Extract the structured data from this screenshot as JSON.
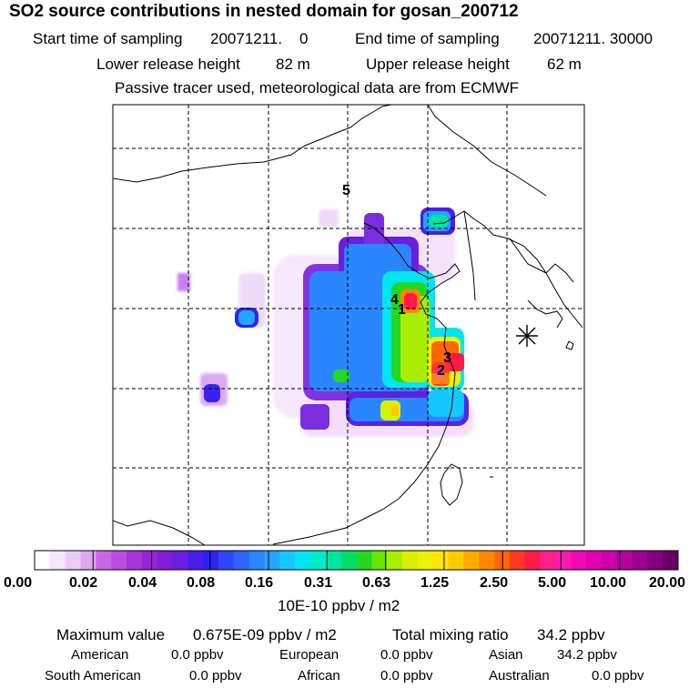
{
  "title": "SO2 source contributions in nested domain for gosan_200712",
  "header": {
    "start_label": "Start time of sampling",
    "start_value": "20071211.    0",
    "end_label": "End time of sampling",
    "end_value": "20071211. 30000",
    "lower_label": "Lower release height",
    "lower_value": "82 m",
    "upper_label": "Upper release height",
    "upper_value": "62 m",
    "note": "Passive tracer used, meteorological data are from ECMWF"
  },
  "map": {
    "source_labels": [
      "5",
      "4",
      "1",
      "3",
      "2"
    ],
    "receptor_marker": "asterisk-icon"
  },
  "colorbar": {
    "ticks": [
      "0.00",
      "0.02",
      "0.04",
      "0.08",
      "0.16",
      "0.31",
      "0.63",
      "1.25",
      "2.50",
      "5.00",
      "10.00",
      "20.00"
    ],
    "colors": [
      "#ffffff",
      "#f4e6fb",
      "#ebccf7",
      "#e0a8f2",
      "#cc66e8",
      "#b84de0",
      "#a833d8",
      "#9922d8",
      "#7f1ed8",
      "#6a1ee0",
      "#4a1ee8",
      "#2f22f2",
      "#2f46ff",
      "#2a66ff",
      "#2a86ff",
      "#22a6ff",
      "#14c8ff",
      "#00e6f0",
      "#00eacc",
      "#00e6a0",
      "#00dc6a",
      "#22d822",
      "#66e600",
      "#a8ee00",
      "#d6f200",
      "#eef200",
      "#ffe600",
      "#ffcc00",
      "#ffaa00",
      "#ff8800",
      "#ff6600",
      "#ff3a22",
      "#ff1a4a",
      "#ff1f8a",
      "#ff1aaa",
      "#f00ab4",
      "#e000b0",
      "#cc00a8",
      "#b4009c",
      "#9c0090",
      "#820080",
      "#660066"
    ],
    "unit": "10E-10 ppbv / m2"
  },
  "summary": {
    "max_label": "Maximum value",
    "max_value": "0.675E-09 ppbv / m2",
    "total_label": "Total mixing ratio",
    "total_value": "34.2 ppbv",
    "regions": [
      {
        "name": "American",
        "value": "0.0 ppbv"
      },
      {
        "name": "European",
        "value": "0.0 ppbv"
      },
      {
        "name": "Asian",
        "value": "34.2 ppbv"
      },
      {
        "name": "South American",
        "value": "0.0 ppbv"
      },
      {
        "name": "African",
        "value": "0.0 ppbv"
      },
      {
        "name": "Australian",
        "value": "0.0 ppbv"
      }
    ]
  }
}
